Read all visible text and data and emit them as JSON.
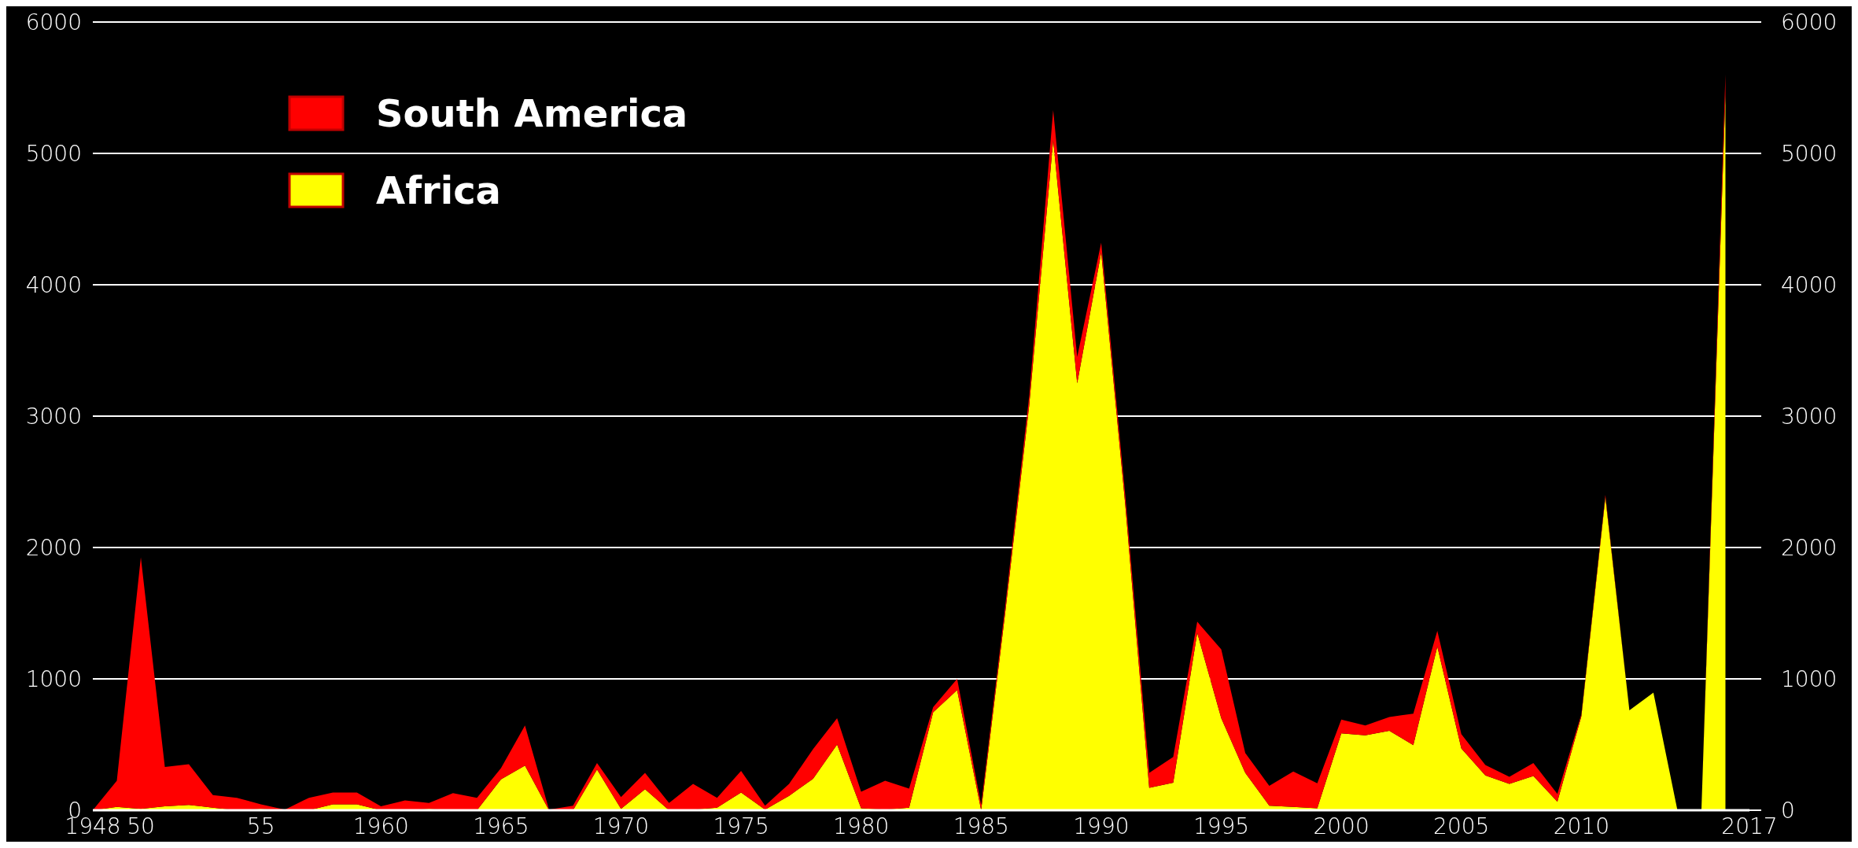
{
  "chart_data": {
    "type": "area",
    "stacked": true,
    "grid": "y",
    "legend": "top left",
    "x": [
      1948,
      1949,
      1950,
      1951,
      1952,
      1953,
      1954,
      1955,
      1956,
      1957,
      1958,
      1959,
      1960,
      1961,
      1962,
      1963,
      1964,
      1965,
      1966,
      1967,
      1968,
      1969,
      1970,
      1971,
      1972,
      1973,
      1974,
      1975,
      1976,
      1977,
      1978,
      1979,
      1980,
      1981,
      1982,
      1983,
      1984,
      1985,
      1986,
      1987,
      1988,
      1989,
      1990,
      1991,
      1992,
      1993,
      1994,
      1995,
      1996,
      1997,
      1998,
      1999,
      2000,
      2001,
      2002,
      2003,
      2004,
      2005,
      2006,
      2007,
      2008,
      2009,
      2010,
      2011,
      2012,
      2013,
      2014,
      2015,
      2016
    ],
    "series": [
      {
        "name": "Africa",
        "color": "#ffff00",
        "values": [
          0,
          25,
          10,
          30,
          40,
          20,
          0,
          10,
          0,
          0,
          45,
          45,
          0,
          0,
          10,
          0,
          0,
          235,
          340,
          0,
          0,
          310,
          10,
          160,
          0,
          5,
          20,
          135,
          5,
          110,
          240,
          500,
          15,
          5,
          20,
          745,
          915,
          0,
          1500,
          3080,
          5100,
          3250,
          4245,
          2330,
          170,
          210,
          1350,
          700,
          285,
          35,
          25,
          15,
          585,
          570,
          605,
          495,
          1245,
          470,
          265,
          200,
          260,
          65,
          715,
          2380,
          760,
          895,
          0,
          0,
          5450
        ]
      },
      {
        "name": "South America",
        "color": "#ff0000",
        "values": [
          0,
          200,
          1915,
          300,
          310,
          95,
          95,
          35,
          5,
          95,
          90,
          90,
          30,
          75,
          45,
          130,
          95,
          85,
          305,
          5,
          35,
          50,
          90,
          125,
          55,
          195,
          75,
          165,
          30,
          90,
          225,
          200,
          125,
          220,
          145,
          40,
          85,
          40,
          50,
          70,
          230,
          200,
          75,
          70,
          115,
          195,
          85,
          525,
          150,
          150,
          270,
          190,
          105,
          75,
          105,
          240,
          120,
          110,
          80,
          55,
          100,
          60,
          15,
          20,
          0,
          0,
          0,
          0,
          150
        ]
      }
    ],
    "xlim": [
      1948,
      2017
    ],
    "xticks": [
      1948,
      {
        "value": 1950,
        "label": "50"
      },
      {
        "value": 1955,
        "label": "55"
      },
      1960,
      1965,
      1970,
      1975,
      1980,
      1985,
      1990,
      1995,
      2000,
      2005,
      2010,
      2017
    ],
    "ylim": [
      0,
      6000
    ],
    "yticks": [
      0,
      1000,
      2000,
      3000,
      4000,
      5000,
      6000
    ],
    "y2lim": [
      0,
      6000
    ],
    "y2ticks": [
      0,
      1000,
      2000,
      3000,
      4000,
      5000,
      6000
    ]
  }
}
